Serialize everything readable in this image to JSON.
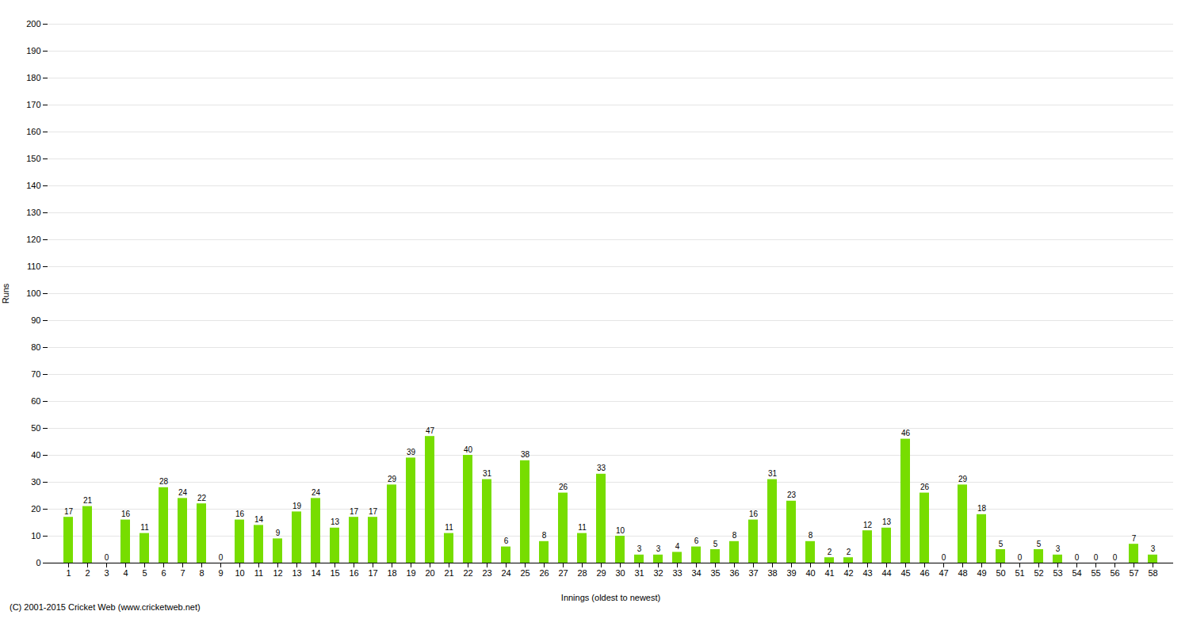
{
  "chart_data": {
    "type": "bar",
    "xlabel": "Innings (oldest to newest)",
    "ylabel": "Runs",
    "caption": "(C) 2001-2015 Cricket Web (www.cricketweb.net)",
    "categories": [
      "1",
      "2",
      "3",
      "4",
      "5",
      "6",
      "7",
      "8",
      "9",
      "10",
      "11",
      "12",
      "13",
      "14",
      "15",
      "16",
      "17",
      "18",
      "19",
      "20",
      "21",
      "22",
      "23",
      "24",
      "25",
      "26",
      "27",
      "28",
      "29",
      "30",
      "31",
      "32",
      "33",
      "34",
      "35",
      "36",
      "37",
      "38",
      "39",
      "40",
      "41",
      "42",
      "43",
      "44",
      "45",
      "46",
      "47",
      "48",
      "49",
      "50",
      "51",
      "52",
      "53",
      "54",
      "55",
      "56",
      "57",
      "58"
    ],
    "values": [
      17,
      21,
      0,
      16,
      11,
      28,
      24,
      22,
      0,
      16,
      14,
      9,
      19,
      24,
      13,
      17,
      17,
      29,
      39,
      47,
      11,
      40,
      31,
      6,
      38,
      8,
      26,
      11,
      33,
      10,
      3,
      3,
      4,
      6,
      5,
      8,
      16,
      31,
      23,
      8,
      2,
      2,
      12,
      13,
      46,
      26,
      0,
      29,
      18,
      5,
      0,
      5,
      3,
      0,
      0,
      0,
      7,
      3
    ],
    "color": "#77dd00",
    "ylim": [
      0,
      200
    ],
    "yticks": [
      0,
      10,
      20,
      30,
      40,
      50,
      60,
      70,
      80,
      90,
      100,
      110,
      120,
      130,
      140,
      150,
      160,
      170,
      180,
      190,
      200
    ],
    "grid": true,
    "data_labels": true
  }
}
